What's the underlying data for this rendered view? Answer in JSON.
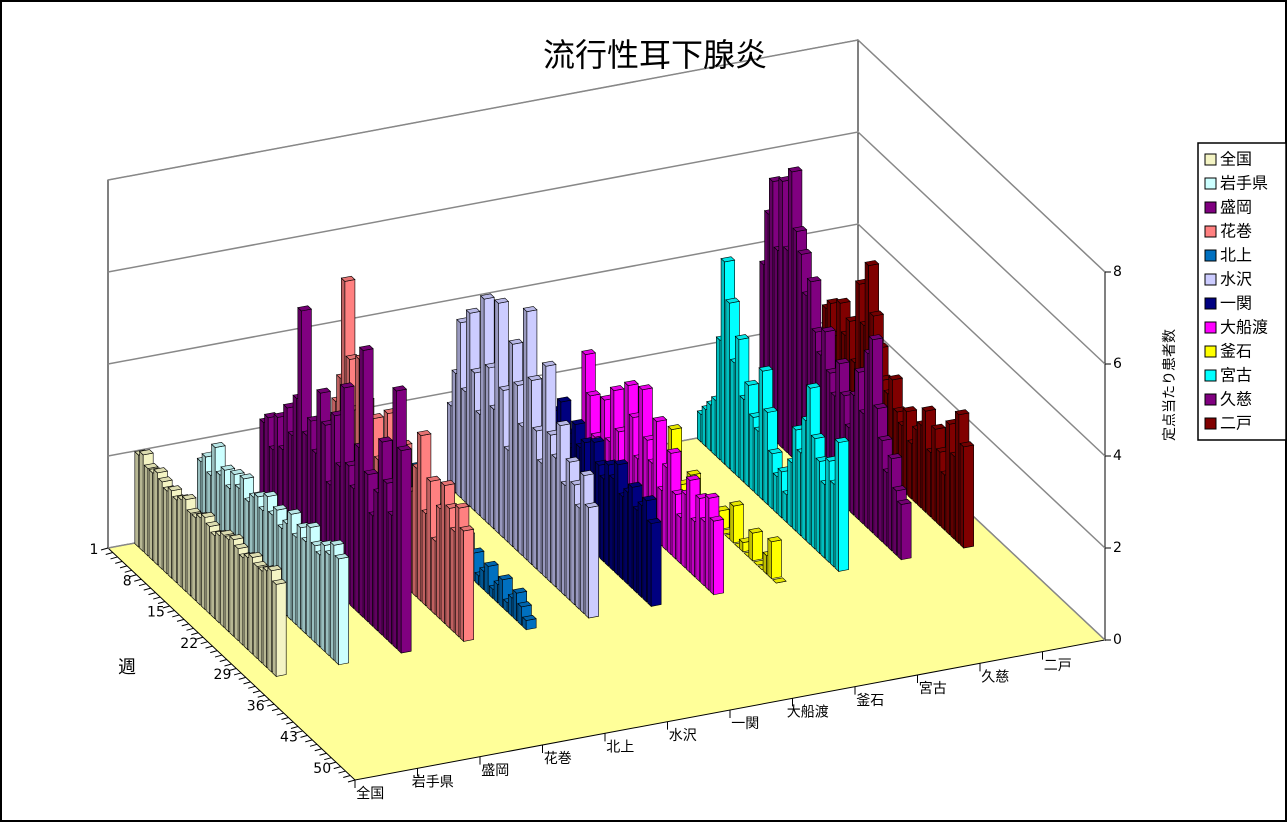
{
  "chart_data": {
    "type": "bar3d",
    "title": "流行性耳下腺炎",
    "x_label": "週",
    "y_label": "定点当たり患者数",
    "categories": [
      1,
      null,
      null,
      null,
      null,
      null,
      null,
      8,
      null,
      null,
      null,
      null,
      null,
      null,
      15,
      null,
      null,
      null,
      null,
      null,
      null,
      22,
      null,
      null,
      null,
      null,
      null,
      null,
      29,
      null,
      null,
      null,
      null,
      null,
      null,
      36,
      null,
      null,
      null,
      null,
      null,
      null,
      43,
      null,
      null,
      null,
      null,
      null,
      null,
      50,
      null,
      null
    ],
    "ylim": [
      0,
      8
    ],
    "yticks": [
      0,
      2,
      4,
      6,
      8
    ],
    "grid": true,
    "series": [
      {
        "name": "全国",
        "color": "#f4f4c4",
        "values": [
          2.0,
          2.1,
          1.9,
          1.9,
          2.0,
          1.9,
          1.8,
          1.9,
          1.8,
          1.9,
          2.0,
          1.8,
          1.8,
          1.9,
          2.0,
          1.9,
          1.8,
          1.9,
          2.0,
          2.0,
          2.1,
          2.0,
          1.9,
          2.0,
          2.1,
          2.0,
          2.0,
          2.1,
          2.2,
          2.0,
          null,
          null,
          null,
          null,
          null,
          null,
          null,
          null,
          null,
          null,
          null,
          null,
          null,
          null,
          null,
          null,
          null,
          null,
          null,
          null,
          null,
          null
        ]
      },
      {
        "name": "岩手県",
        "color": "#ccffff",
        "values": [
          1.6,
          1.8,
          1.5,
          2.2,
          1.7,
          1.9,
          1.6,
          2.0,
          1.8,
          2.1,
          1.7,
          1.9,
          2.0,
          1.8,
          2.2,
          1.9,
          2.1,
          1.8,
          2.0,
          2.3,
          1.9,
          2.2,
          2.0,
          2.4,
          2.1,
          2.0,
          2.3,
          2.2,
          2.5,
          2.3,
          null,
          null,
          null,
          null,
          null,
          null,
          null,
          null,
          null,
          null,
          null,
          null,
          null,
          null,
          null,
          null,
          null,
          null,
          null,
          null,
          null,
          null
        ]
      },
      {
        "name": "盛岡",
        "color": "#800080",
        "values": [
          2.2,
          2.4,
          1.8,
          2.6,
          2.0,
          3.0,
          2.5,
          3.4,
          5.4,
          2.8,
          3.2,
          2.6,
          4.0,
          3.4,
          2.2,
          3.8,
          2.8,
          4.6,
          3.0,
          2.6,
          3.6,
          5.8,
          3.2,
          2.4,
          3.0,
          4.2,
          3.4,
          2.8,
          5.6,
          4.4,
          null,
          null,
          null,
          null,
          null,
          null,
          null,
          null,
          null,
          null,
          null,
          null,
          null,
          null,
          null,
          null,
          null,
          null,
          null,
          null,
          null,
          null
        ]
      },
      {
        "name": "花巻",
        "color": "#ff8080",
        "values": [
          2.0,
          1.4,
          2.6,
          3.2,
          5.4,
          3.8,
          2.8,
          4.0,
          3.2,
          2.4,
          3.0,
          2.2,
          2.6,
          3.4,
          1.8,
          2.4,
          3.0,
          1.6,
          2.2,
          2.8,
          3.6,
          2.0,
          2.8,
          1.6,
          2.4,
          3.0,
          2.6,
          2.2,
          2.8,
          2.4,
          null,
          null,
          null,
          null,
          null,
          null,
          null,
          null,
          null,
          null,
          null,
          null,
          null,
          null,
          null,
          null,
          null,
          null,
          null,
          null,
          null,
          null
        ]
      },
      {
        "name": "北上",
        "color": "#0070c0",
        "values": [
          1.2,
          0.8,
          1.4,
          1.0,
          0.6,
          1.2,
          0.8,
          1.0,
          0.6,
          0.4,
          0.8,
          0.6,
          1.0,
          0.4,
          0.6,
          0.2,
          0.8,
          0.4,
          0.6,
          0.2,
          0.4,
          0.6,
          0.2,
          0.4,
          0.6,
          0.2,
          0.4,
          0.6,
          0.4,
          0.2,
          null,
          null,
          null,
          null,
          null,
          null,
          null,
          null,
          null,
          null,
          null,
          null,
          null,
          null,
          null,
          null,
          null,
          null,
          null,
          null,
          null,
          null
        ]
      },
      {
        "name": "水沢",
        "color": "#ccccff",
        "values": [
          1.8,
          2.6,
          3.8,
          2.4,
          4.2,
          3.0,
          2.2,
          4.8,
          3.4,
          2.6,
          5.0,
          3.2,
          2.0,
          4.4,
          3.6,
          2.8,
          5.4,
          4.0,
          3.0,
          2.4,
          4.6,
          3.2,
          2.8,
          3.6,
          2.4,
          3.0,
          2.6,
          2.2,
          3.0,
          2.4,
          null,
          null,
          null,
          null,
          null,
          null,
          null,
          null,
          null,
          null,
          null,
          null,
          null,
          null,
          null,
          null,
          null,
          null,
          null,
          null,
          null,
          null
        ]
      },
      {
        "name": "一関",
        "color": "#000080",
        "values": [
          1.8,
          2.0,
          1.6,
          2.2,
          1.8,
          2.4,
          2.0,
          1.6,
          2.2,
          1.8,
          2.6,
          2.0,
          1.8,
          2.4,
          2.0,
          2.2,
          1.6,
          2.4,
          2.0,
          1.8,
          2.2,
          2.0,
          2.4,
          1.8,
          2.0,
          2.2,
          1.8,
          2.0,
          2.2,
          1.8,
          null,
          null,
          null,
          null,
          null,
          null,
          null,
          null,
          null,
          null,
          null,
          null,
          null,
          null,
          null,
          null,
          null,
          null,
          null,
          null,
          null,
          null
        ]
      },
      {
        "name": "大船渡",
        "color": "#ff00ff",
        "values": [
          0.0,
          0.2,
          2.6,
          1.8,
          1.0,
          0.4,
          2.0,
          1.2,
          2.4,
          1.6,
          0.8,
          2.8,
          2.2,
          1.4,
          3.0,
          2.0,
          1.6,
          2.6,
          1.2,
          1.8,
          2.2,
          1.4,
          1.0,
          1.6,
          2.0,
          1.2,
          1.8,
          1.4,
          2.0,
          1.6,
          null,
          null,
          null,
          null,
          null,
          null,
          null,
          null,
          null,
          null,
          null,
          null,
          null,
          null,
          null,
          null,
          null,
          null,
          null,
          null,
          null,
          null
        ]
      },
      {
        "name": "釜石",
        "color": "#ffff00",
        "values": [
          0.0,
          0.0,
          0.0,
          0.2,
          0.0,
          0.0,
          0.4,
          1.2,
          0.0,
          0.2,
          0.0,
          0.6,
          0.0,
          0.0,
          0.2,
          0.0,
          0.0,
          0.4,
          0.0,
          0.0,
          0.8,
          0.0,
          0.2,
          0.0,
          0.6,
          0.0,
          0.0,
          0.4,
          0.8,
          0.0,
          null,
          null,
          null,
          null,
          null,
          null,
          null,
          null,
          null,
          null,
          null,
          null,
          null,
          null,
          null,
          null,
          null,
          null,
          null,
          null,
          null,
          null
        ]
      },
      {
        "name": "宮古",
        "color": "#00ffff",
        "values": [
          0.6,
          0.8,
          1.0,
          1.2,
          2.6,
          4.4,
          3.6,
          2.4,
          3.0,
          1.8,
          2.2,
          1.6,
          1.4,
          2.8,
          2.0,
          1.2,
          0.8,
          1.0,
          0.6,
          1.4,
          2.2,
          1.8,
          2.6,
          3.4,
          2.4,
          2.0,
          1.6,
          2.2,
          1.8,
          2.8,
          null,
          null,
          null,
          null,
          null,
          null,
          null,
          null,
          null,
          null,
          null,
          null,
          null,
          null,
          null,
          null,
          null,
          null,
          null,
          null,
          null,
          null
        ]
      },
      {
        "name": "久慈",
        "color": "#800080",
        "values": [
          3.6,
          4.8,
          5.6,
          4.2,
          5.8,
          4.4,
          6.2,
          5.0,
          4.6,
          3.8,
          4.2,
          3.2,
          2.8,
          3.4,
          2.6,
          2.2,
          3.0,
          2.4,
          1.8,
          2.6,
          3.2,
          2.4,
          3.8,
          4.2,
          2.8,
          2.2,
          1.6,
          2.0,
          1.4,
          1.2,
          null,
          null,
          null,
          null,
          null,
          null,
          null,
          null,
          null,
          null,
          null,
          null,
          null,
          null,
          null,
          null,
          null,
          null,
          null,
          null,
          null,
          null
        ]
      },
      {
        "name": "二戸",
        "color": "#800000",
        "values": [
          2.4,
          2.6,
          2.0,
          2.8,
          2.2,
          2.6,
          1.8,
          3.6,
          2.8,
          4.2,
          3.2,
          2.6,
          2.0,
          1.8,
          2.2,
          1.6,
          1.4,
          1.8,
          1.2,
          1.6,
          1.8,
          2.2,
          1.4,
          2.0,
          1.6,
          1.2,
          2.4,
          1.8,
          2.8,
          2.2,
          null,
          null,
          null,
          null,
          null,
          null,
          null,
          null,
          null,
          null,
          null,
          null,
          null,
          null,
          null,
          null,
          null,
          null,
          null,
          null,
          null,
          null
        ]
      }
    ]
  }
}
